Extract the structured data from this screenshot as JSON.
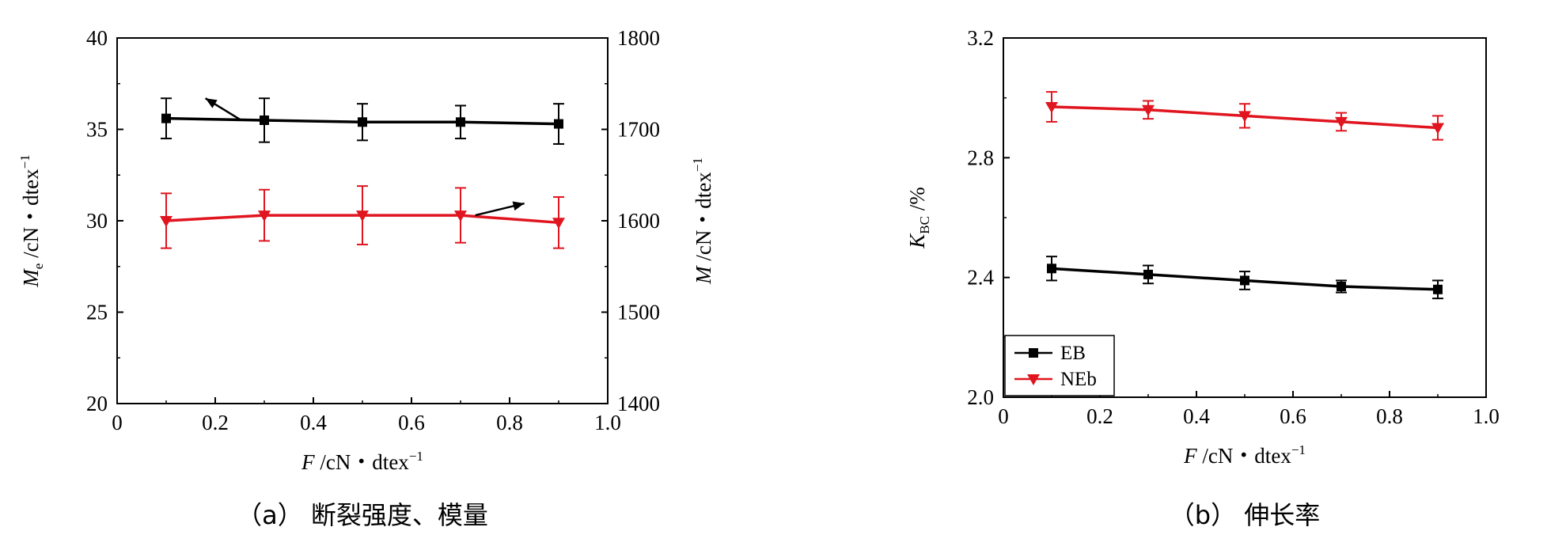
{
  "chart_data": [
    {
      "type": "line",
      "caption": "（a） 断裂强度、模量",
      "x": [
        0.1,
        0.3,
        0.5,
        0.7,
        0.9
      ],
      "xlim": [
        0,
        1.0
      ],
      "xticks": [
        "0",
        "0.2",
        "0.4",
        "0.6",
        "0.8",
        "1.0"
      ],
      "xlabel": {
        "italic": "F",
        "rest": " /cN・dtex",
        "sup": "−1"
      },
      "ylim": [
        20,
        40
      ],
      "yticks": [
        "20",
        "25",
        "30",
        "35",
        "40"
      ],
      "ylabel": {
        "italic": "M",
        "sub": "e",
        "rest": " /cN・dtex",
        "sup": "−1"
      },
      "y2lim": [
        1400,
        1800
      ],
      "y2ticks": [
        "1400",
        "1500",
        "1600",
        "1700",
        "1800"
      ],
      "y2label": {
        "italic": "M",
        "rest": " /cN・dtex",
        "sup": "−1"
      },
      "series": [
        {
          "axis": "left",
          "color": "#000000",
          "marker": "square",
          "values": [
            35.6,
            35.5,
            35.4,
            35.4,
            35.3
          ],
          "errors": [
            1.1,
            1.2,
            1.0,
            0.9,
            1.1
          ]
        },
        {
          "axis": "left",
          "color": "#e0151f",
          "marker": "triangle-down",
          "values": [
            30.0,
            30.3,
            30.3,
            30.3,
            29.9
          ],
          "errors": [
            1.5,
            1.4,
            1.6,
            1.5,
            1.4
          ]
        }
      ]
    },
    {
      "type": "line",
      "caption": "（b） 伸长率",
      "x": [
        0.1,
        0.3,
        0.5,
        0.7,
        0.9
      ],
      "xlim": [
        0,
        1.0
      ],
      "xticks": [
        "0",
        "0.2",
        "0.4",
        "0.6",
        "0.8",
        "1.0"
      ],
      "xlabel": {
        "italic": "F",
        "rest": " /cN・dtex",
        "sup": "−1"
      },
      "ylim": [
        2.0,
        3.2
      ],
      "yticks": [
        "2.0",
        "2.4",
        "2.8",
        "3.2"
      ],
      "ylabel": {
        "italic": "K",
        "sub": "BC",
        "rest": " /%"
      },
      "legend_position": "bottom-left",
      "series": [
        {
          "name": "EB",
          "color": "#000000",
          "marker": "square",
          "values": [
            2.43,
            2.41,
            2.39,
            2.37,
            2.36
          ],
          "errors": [
            0.04,
            0.03,
            0.03,
            0.02,
            0.03
          ]
        },
        {
          "name": "NEb",
          "color": "#e0151f",
          "marker": "triangle-down",
          "values": [
            2.97,
            2.96,
            2.94,
            2.92,
            2.9
          ],
          "errors": [
            0.05,
            0.03,
            0.04,
            0.03,
            0.04
          ]
        }
      ]
    }
  ]
}
